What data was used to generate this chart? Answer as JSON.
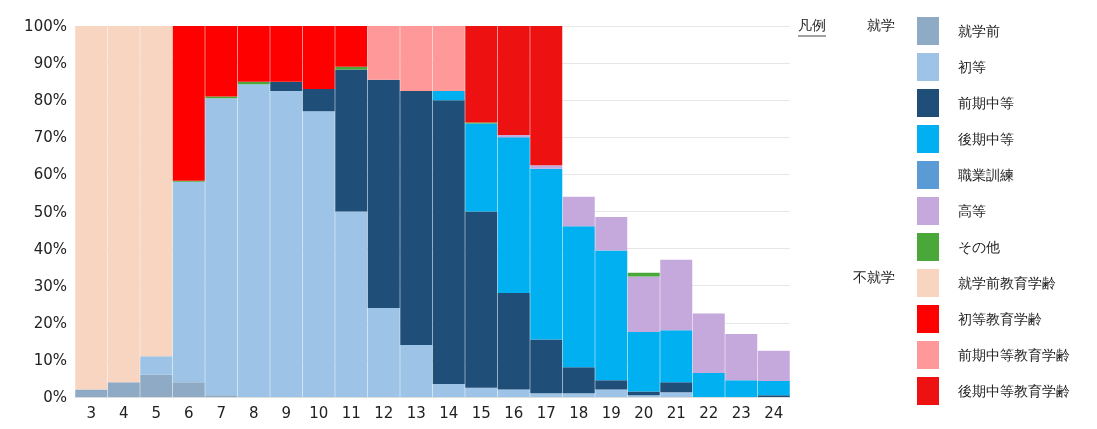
{
  "chart_data": {
    "type": "bar",
    "stacked": true,
    "legend": "right",
    "legend_title": "凡例",
    "grid": "y",
    "categories": [
      "3",
      "4",
      "5",
      "6",
      "7",
      "8",
      "9",
      "10",
      "11",
      "12",
      "13",
      "14",
      "15",
      "16",
      "17",
      "18",
      "19",
      "20",
      "21",
      "22",
      "23",
      "24"
    ],
    "ylim": [
      0,
      100
    ],
    "yticks": [
      {
        "value": 0,
        "label": "0%"
      },
      {
        "value": 10,
        "label": "10%"
      },
      {
        "value": 20,
        "label": "20%"
      },
      {
        "value": 30,
        "label": "30%"
      },
      {
        "value": 40,
        "label": "40%"
      },
      {
        "value": 50,
        "label": "50%"
      },
      {
        "value": 60,
        "label": "60%"
      },
      {
        "value": 70,
        "label": "70%"
      },
      {
        "value": 80,
        "label": "80%"
      },
      {
        "value": 90,
        "label": "90%"
      },
      {
        "value": 100,
        "label": "100%"
      }
    ],
    "annotations": [
      "就学",
      "不就学"
    ],
    "series": [
      {
        "name": "就学前",
        "color": "#8faac4",
        "values": [
          2,
          4,
          6,
          4,
          0.5,
          null,
          null,
          null,
          null,
          null,
          null,
          null,
          null,
          null,
          null,
          null,
          null,
          null,
          null,
          null,
          null,
          null
        ]
      },
      {
        "name": "初等",
        "color": "#9dc3e6",
        "values": [
          null,
          null,
          5,
          54,
          80,
          84.3,
          82.5,
          77,
          50,
          24,
          14,
          3.5,
          2.5,
          2,
          1,
          1,
          2,
          0.5,
          1.3,
          null,
          null,
          null
        ]
      },
      {
        "name": "前期中等",
        "color": "#1f4e79",
        "values": [
          null,
          null,
          null,
          null,
          null,
          null,
          2.5,
          6,
          38.3,
          61.5,
          68.5,
          76.5,
          47.5,
          26,
          14.5,
          7,
          2.5,
          1,
          2.7,
          null,
          null,
          0.5
        ]
      },
      {
        "name": "後期中等",
        "color": "#00b0f0",
        "values": [
          null,
          null,
          null,
          null,
          null,
          null,
          null,
          null,
          null,
          null,
          null,
          2.5,
          23.7,
          42,
          46,
          38,
          35,
          16,
          14,
          6.5,
          4.5,
          3.8
        ]
      },
      {
        "name": "職業訓練",
        "color": "#5b9bd5",
        "values": [
          null,
          null,
          null,
          null,
          null,
          null,
          null,
          null,
          null,
          null,
          null,
          null,
          null,
          null,
          null,
          null,
          null,
          null,
          null,
          null,
          null,
          null
        ]
      },
      {
        "name": "高等",
        "color": "#c5a9dc",
        "values": [
          null,
          null,
          null,
          null,
          null,
          null,
          null,
          null,
          null,
          null,
          null,
          null,
          null,
          0.6,
          1,
          8,
          9,
          15,
          19,
          16,
          12.5,
          8.2
        ]
      },
      {
        "name": "その他",
        "color": "#4aa83a",
        "values": [
          null,
          null,
          null,
          0.3,
          0.5,
          0.7,
          null,
          null,
          0.7,
          null,
          null,
          null,
          0.3,
          null,
          null,
          null,
          null,
          1,
          null,
          null,
          null,
          null
        ]
      },
      {
        "name": "就学前教育学齢",
        "color": "#f8d5c0",
        "values": [
          98,
          96,
          89,
          null,
          null,
          null,
          null,
          null,
          null,
          null,
          null,
          null,
          null,
          null,
          null,
          null,
          null,
          null,
          null,
          null,
          null,
          null
        ]
      },
      {
        "name": "初等教育学齢",
        "color": "#ff0000",
        "values": [
          null,
          null,
          null,
          41.7,
          19,
          15,
          15,
          17,
          11,
          null,
          null,
          null,
          null,
          null,
          null,
          null,
          null,
          null,
          null,
          null,
          null,
          null
        ]
      },
      {
        "name": "前期中等教育学齢",
        "color": "#ff9999",
        "values": [
          null,
          null,
          null,
          null,
          null,
          null,
          null,
          null,
          null,
          14.5,
          17.5,
          17.5,
          null,
          null,
          null,
          null,
          null,
          null,
          null,
          null,
          null,
          null
        ]
      },
      {
        "name": "後期中等教育学齢",
        "color": "#ee1111",
        "values": [
          null,
          null,
          null,
          null,
          null,
          null,
          null,
          null,
          null,
          null,
          null,
          null,
          26,
          29.4,
          37.5,
          null,
          null,
          null,
          null,
          null,
          null,
          null
        ]
      }
    ]
  }
}
